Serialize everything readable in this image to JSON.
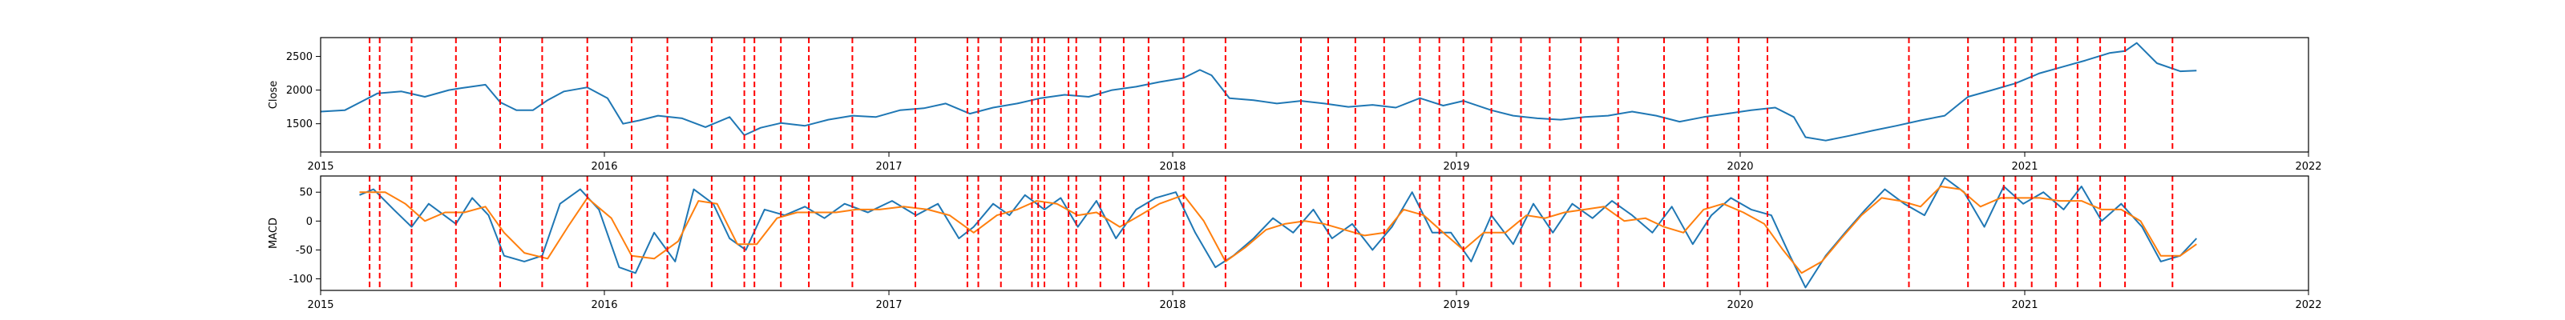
{
  "chart_data": [
    {
      "type": "line",
      "ylabel": "Close",
      "xlabel": "",
      "title": "",
      "grid": false,
      "xlim": [
        "2015-01-01",
        "2022-01-01"
      ],
      "ylim": [
        1080,
        2780
      ],
      "x_ticks": [
        "2015",
        "2016",
        "2017",
        "2018",
        "2019",
        "2020",
        "2021",
        "2022"
      ],
      "y_ticks": [
        1500,
        2000,
        2500
      ],
      "vlines": [
        "2015-03-05",
        "2015-03-18",
        "2015-04-28",
        "2015-06-24",
        "2015-08-20",
        "2015-10-13",
        "2015-12-10",
        "2016-02-05",
        "2016-03-22",
        "2016-05-18",
        "2016-06-29",
        "2016-07-12",
        "2016-08-15",
        "2016-09-20",
        "2016-11-15",
        "2017-02-04",
        "2017-04-12",
        "2017-04-26",
        "2017-05-25",
        "2017-07-04",
        "2017-07-12",
        "2017-07-20",
        "2017-08-20",
        "2017-08-30",
        "2017-09-30",
        "2017-10-30",
        "2017-12-01",
        "2018-01-15",
        "2018-03-10",
        "2018-06-15",
        "2018-07-20",
        "2018-08-24",
        "2018-09-30",
        "2018-11-15",
        "2018-12-10",
        "2019-01-10",
        "2019-02-15",
        "2019-03-25",
        "2019-05-01",
        "2019-06-10",
        "2019-07-28",
        "2019-09-25",
        "2019-11-20",
        "2019-12-30",
        "2020-02-05",
        "2020-08-05",
        "2020-10-20",
        "2020-12-05",
        "2020-12-20",
        "2021-01-10",
        "2021-02-10",
        "2021-03-10",
        "2021-04-08",
        "2021-05-10",
        "2021-07-10"
      ],
      "vline_color": "#ff0000",
      "series": [
        {
          "color": "#1f77b4",
          "x": [
            "2015-01-01",
            "2015-02-01",
            "2015-03-15",
            "2015-04-15",
            "2015-05-15",
            "2015-06-15",
            "2015-07-01",
            "2015-08-01",
            "2015-08-20",
            "2015-09-10",
            "2015-10-01",
            "2015-10-20",
            "2015-11-10",
            "2015-12-10",
            "2016-01-05",
            "2016-01-25",
            "2016-02-15",
            "2016-03-10",
            "2016-04-10",
            "2016-05-10",
            "2016-06-10",
            "2016-06-29",
            "2016-07-20",
            "2016-08-15",
            "2016-09-15",
            "2016-10-15",
            "2016-11-15",
            "2016-12-15",
            "2017-01-15",
            "2017-02-15",
            "2017-03-15",
            "2017-04-15",
            "2017-05-15",
            "2017-06-15",
            "2017-07-15",
            "2017-08-15",
            "2017-09-15",
            "2017-10-15",
            "2017-11-15",
            "2017-12-15",
            "2018-01-15",
            "2018-02-05",
            "2018-02-20",
            "2018-03-15",
            "2018-04-15",
            "2018-05-15",
            "2018-06-15",
            "2018-07-15",
            "2018-08-15",
            "2018-09-15",
            "2018-10-15",
            "2018-11-15",
            "2018-12-15",
            "2019-01-10",
            "2019-02-15",
            "2019-03-15",
            "2019-04-15",
            "2019-05-15",
            "2019-06-15",
            "2019-07-15",
            "2019-08-15",
            "2019-09-15",
            "2019-10-15",
            "2019-11-15",
            "2019-12-15",
            "2020-01-15",
            "2020-02-15",
            "2020-03-10",
            "2020-03-25",
            "2020-04-20",
            "2020-05-20",
            "2020-06-20",
            "2020-07-20",
            "2020-08-20",
            "2020-09-20",
            "2020-10-20",
            "2020-11-20",
            "2020-12-20",
            "2021-01-20",
            "2021-02-20",
            "2021-03-20",
            "2021-04-20",
            "2021-05-10",
            "2021-05-25",
            "2021-06-20",
            "2021-07-20",
            "2021-08-10"
          ],
          "values": [
            1680,
            1700,
            1950,
            1980,
            1900,
            2000,
            2030,
            2080,
            1820,
            1700,
            1700,
            1850,
            1980,
            2040,
            1880,
            1500,
            1550,
            1620,
            1580,
            1450,
            1600,
            1330,
            1440,
            1510,
            1470,
            1560,
            1620,
            1600,
            1700,
            1730,
            1800,
            1650,
            1740,
            1800,
            1880,
            1930,
            1900,
            2000,
            2050,
            2120,
            2180,
            2300,
            2220,
            1880,
            1850,
            1800,
            1840,
            1800,
            1750,
            1780,
            1740,
            1880,
            1770,
            1840,
            1700,
            1620,
            1580,
            1560,
            1600,
            1620,
            1680,
            1620,
            1530,
            1600,
            1650,
            1700,
            1740,
            1600,
            1300,
            1250,
            1320,
            1400,
            1470,
            1550,
            1620,
            1900,
            2000,
            2100,
            2250,
            2350,
            2440,
            2550,
            2580,
            2700,
            2400,
            2280,
            2290
          ]
        }
      ]
    },
    {
      "type": "line",
      "ylabel": "MACD",
      "xlabel": "",
      "title": "",
      "grid": false,
      "xlim": [
        "2015-01-01",
        "2022-01-01"
      ],
      "ylim": [
        -120,
        78
      ],
      "x_ticks": [
        "2015",
        "2016",
        "2017",
        "2018",
        "2019",
        "2020",
        "2021",
        "2022"
      ],
      "y_ticks": [
        50,
        0,
        -50,
        -100
      ],
      "vlines": [
        "2015-03-05",
        "2015-03-18",
        "2015-04-28",
        "2015-06-24",
        "2015-08-20",
        "2015-10-13",
        "2015-12-10",
        "2016-02-05",
        "2016-03-22",
        "2016-05-18",
        "2016-06-29",
        "2016-07-12",
        "2016-08-15",
        "2016-09-20",
        "2016-11-15",
        "2017-02-04",
        "2017-04-12",
        "2017-04-26",
        "2017-05-25",
        "2017-07-04",
        "2017-07-12",
        "2017-07-20",
        "2017-08-20",
        "2017-08-30",
        "2017-09-30",
        "2017-10-30",
        "2017-12-01",
        "2018-01-15",
        "2018-03-10",
        "2018-06-15",
        "2018-07-20",
        "2018-08-24",
        "2018-09-30",
        "2018-11-15",
        "2018-12-10",
        "2019-01-10",
        "2019-02-15",
        "2019-03-25",
        "2019-05-01",
        "2019-06-10",
        "2019-07-28",
        "2019-09-25",
        "2019-11-20",
        "2019-12-30",
        "2020-02-05",
        "2020-08-05",
        "2020-10-20",
        "2020-12-05",
        "2020-12-20",
        "2021-01-10",
        "2021-02-10",
        "2021-03-10",
        "2021-04-08",
        "2021-05-10",
        "2021-07-10"
      ],
      "vline_color": "#ff0000",
      "series": [
        {
          "color": "#1f77b4",
          "x": [
            "2015-02-20",
            "2015-03-10",
            "2015-04-05",
            "2015-04-28",
            "2015-05-20",
            "2015-06-24",
            "2015-07-15",
            "2015-08-05",
            "2015-08-25",
            "2015-09-20",
            "2015-10-13",
            "2015-11-05",
            "2015-12-01",
            "2015-12-25",
            "2016-01-20",
            "2016-02-10",
            "2016-03-05",
            "2016-04-01",
            "2016-04-25",
            "2016-05-20",
            "2016-06-10",
            "2016-07-01",
            "2016-07-25",
            "2016-08-20",
            "2016-09-15",
            "2016-10-10",
            "2016-11-05",
            "2016-12-05",
            "2017-01-05",
            "2017-02-05",
            "2017-03-05",
            "2017-04-01",
            "2017-04-20",
            "2017-05-15",
            "2017-06-05",
            "2017-06-25",
            "2017-07-20",
            "2017-08-10",
            "2017-09-01",
            "2017-09-25",
            "2017-10-20",
            "2017-11-15",
            "2017-12-10",
            "2018-01-05",
            "2018-01-30",
            "2018-02-25",
            "2018-03-20",
            "2018-04-15",
            "2018-05-10",
            "2018-06-05",
            "2018-07-01",
            "2018-07-25",
            "2018-08-20",
            "2018-09-15",
            "2018-10-10",
            "2018-11-05",
            "2018-12-01",
            "2018-12-25",
            "2019-01-20",
            "2019-02-15",
            "2019-03-15",
            "2019-04-10",
            "2019-05-05",
            "2019-05-30",
            "2019-06-25",
            "2019-07-20",
            "2019-08-15",
            "2019-09-10",
            "2019-10-05",
            "2019-11-01",
            "2019-11-25",
            "2019-12-20",
            "2020-01-15",
            "2020-02-10",
            "2020-03-05",
            "2020-03-25",
            "2020-04-20",
            "2020-05-15",
            "2020-06-10",
            "2020-07-05",
            "2020-07-30",
            "2020-08-25",
            "2020-09-20",
            "2020-10-15",
            "2020-11-10",
            "2020-12-05",
            "2020-12-30",
            "2021-01-25",
            "2021-02-20",
            "2021-03-15",
            "2021-04-10",
            "2021-05-05",
            "2021-06-01",
            "2021-06-25",
            "2021-07-20",
            "2021-08-10"
          ],
          "values": [
            45,
            55,
            20,
            -10,
            30,
            -5,
            40,
            10,
            -60,
            -70,
            -60,
            30,
            55,
            20,
            -80,
            -90,
            -20,
            -70,
            55,
            30,
            -30,
            -50,
            20,
            10,
            25,
            5,
            30,
            15,
            35,
            10,
            30,
            -30,
            -10,
            30,
            10,
            45,
            20,
            40,
            -10,
            35,
            -30,
            20,
            40,
            50,
            -20,
            -80,
            -60,
            -30,
            5,
            -20,
            20,
            -30,
            -5,
            -50,
            -10,
            50,
            -20,
            -20,
            -70,
            10,
            -40,
            30,
            -20,
            30,
            5,
            35,
            10,
            -20,
            25,
            -40,
            10,
            40,
            20,
            10,
            -60,
            -115,
            -60,
            -20,
            20,
            55,
            30,
            10,
            75,
            50,
            -10,
            60,
            30,
            50,
            20,
            60,
            0,
            30,
            -10,
            -70,
            -60,
            -30
          ]
        },
        {
          "color": "#ff7f0e",
          "x": [
            "2015-02-20",
            "2015-03-25",
            "2015-04-20",
            "2015-05-15",
            "2015-06-10",
            "2015-07-05",
            "2015-08-01",
            "2015-08-25",
            "2015-09-20",
            "2015-10-20",
            "2015-11-15",
            "2015-12-10",
            "2016-01-10",
            "2016-02-05",
            "2016-03-05",
            "2016-04-05",
            "2016-05-01",
            "2016-05-25",
            "2016-06-20",
            "2016-07-15",
            "2016-08-10",
            "2016-09-05",
            "2016-10-01",
            "2016-10-25",
            "2016-11-20",
            "2016-12-20",
            "2017-01-20",
            "2017-02-20",
            "2017-03-20",
            "2017-04-20",
            "2017-05-20",
            "2017-06-15",
            "2017-07-10",
            "2017-08-05",
            "2017-09-01",
            "2017-09-25",
            "2017-10-25",
            "2017-11-20",
            "2017-12-15",
            "2018-01-15",
            "2018-02-10",
            "2018-03-10",
            "2018-04-05",
            "2018-05-01",
            "2018-05-25",
            "2018-06-20",
            "2018-07-15",
            "2018-08-10",
            "2018-09-05",
            "2018-10-01",
            "2018-10-25",
            "2018-11-20",
            "2018-12-15",
            "2019-01-10",
            "2019-02-05",
            "2019-03-05",
            "2019-04-01",
            "2019-04-25",
            "2019-05-20",
            "2019-06-15",
            "2019-07-10",
            "2019-08-05",
            "2019-09-01",
            "2019-09-25",
            "2019-10-20",
            "2019-11-15",
            "2019-12-10",
            "2020-01-05",
            "2020-02-01",
            "2020-02-25",
            "2020-03-20",
            "2020-04-15",
            "2020-05-10",
            "2020-06-05",
            "2020-07-01",
            "2020-07-25",
            "2020-08-20",
            "2020-09-15",
            "2020-10-10",
            "2020-11-05",
            "2020-12-01",
            "2020-12-25",
            "2021-01-20",
            "2021-02-15",
            "2021-03-15",
            "2021-04-10",
            "2021-05-05",
            "2021-05-30",
            "2021-06-25",
            "2021-07-20",
            "2021-08-10"
          ],
          "values": [
            50,
            50,
            30,
            0,
            15,
            15,
            25,
            -20,
            -55,
            -65,
            -10,
            40,
            5,
            -60,
            -65,
            -35,
            35,
            30,
            -40,
            -40,
            5,
            15,
            15,
            15,
            20,
            20,
            25,
            20,
            10,
            -20,
            10,
            20,
            35,
            30,
            10,
            15,
            -10,
            10,
            30,
            45,
            0,
            -70,
            -45,
            -15,
            -5,
            0,
            -5,
            -15,
            -25,
            -20,
            20,
            10,
            -20,
            -50,
            -20,
            -20,
            10,
            5,
            15,
            20,
            25,
            0,
            5,
            -10,
            -20,
            20,
            30,
            15,
            -5,
            -50,
            -90,
            -70,
            -30,
            10,
            40,
            35,
            25,
            60,
            55,
            25,
            40,
            40,
            40,
            35,
            35,
            20,
            20,
            0,
            -60,
            -60,
            -40
          ]
        }
      ]
    }
  ]
}
